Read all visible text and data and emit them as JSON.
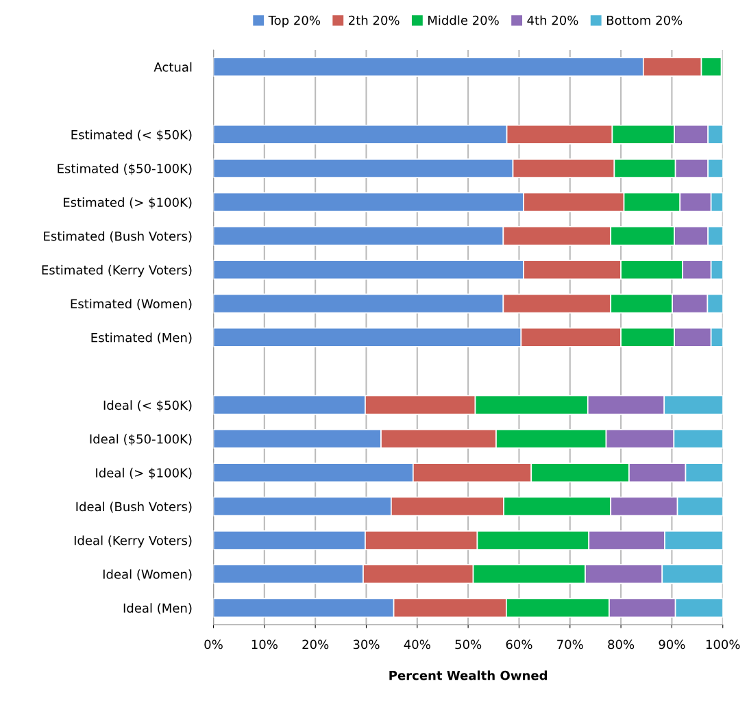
{
  "chart_data": {
    "type": "bar",
    "orientation": "horizontal",
    "stacked": true,
    "xlabel": "Percent Wealth Owned",
    "categories": [
      "Actual",
      null,
      "Estimated (< $50K)",
      "Estimated ($50-100K)",
      "Estimated (> $100K)",
      "Estimated (Bush Voters)",
      "Estimated (Kerry Voters)",
      "Estimated (Women)",
      "Estimated (Men)",
      null,
      "Ideal (< $50K)",
      "Ideal ($50-100K)",
      "Ideal (> $100K)",
      "Ideal (Bush Voters)",
      "Ideal (Kerry Voters)",
      "Ideal (Women)",
      "Ideal (Men)"
    ],
    "series": [
      {
        "name": "Top 20%",
        "color": "#5b8ed6",
        "values": [
          84.4,
          null,
          57.6,
          58.8,
          60.9,
          56.9,
          60.9,
          56.9,
          60.4,
          null,
          29.8,
          32.9,
          39.2,
          34.9,
          29.8,
          29.4,
          35.4
        ]
      },
      {
        "name": "2th 20%",
        "color": "#cc5e55",
        "values": [
          11.4,
          null,
          20.7,
          19.9,
          19.7,
          21.1,
          19.1,
          21.1,
          19.6,
          null,
          21.6,
          22.6,
          23.2,
          22.1,
          22.0,
          21.6,
          22.1
        ]
      },
      {
        "name": "Middle 20%",
        "color": "#00b84a",
        "values": [
          3.9,
          null,
          12.2,
          12.0,
          11.0,
          12.5,
          12.1,
          12.1,
          10.5,
          null,
          22.1,
          21.6,
          19.2,
          21.0,
          21.9,
          22.0,
          20.2
        ]
      },
      {
        "name": "4th 20%",
        "color": "#8e6db8",
        "values": [
          null,
          null,
          6.6,
          6.4,
          6.1,
          6.6,
          5.6,
          6.9,
          7.2,
          null,
          15.0,
          13.3,
          11.1,
          13.1,
          14.9,
          15.1,
          13.0
        ]
      },
      {
        "name": "Bottom 20%",
        "color": "#4db4d6",
        "values": [
          null,
          null,
          2.9,
          2.9,
          2.3,
          2.9,
          2.3,
          3.0,
          2.3,
          null,
          11.5,
          9.6,
          7.3,
          8.9,
          11.4,
          11.9,
          9.3
        ]
      }
    ],
    "xlim": [
      0,
      100
    ],
    "xticks": [
      {
        "value": 0,
        "label": "0%"
      },
      {
        "value": 10,
        "label": "10%"
      },
      {
        "value": 20,
        "label": "20%"
      },
      {
        "value": 30,
        "label": "30%"
      },
      {
        "value": 40,
        "label": "40%"
      },
      {
        "value": 50,
        "label": "50%"
      },
      {
        "value": 60,
        "label": "60%"
      },
      {
        "value": 70,
        "label": "70%"
      },
      {
        "value": 80,
        "label": "80%"
      },
      {
        "value": 90,
        "label": "90%"
      },
      {
        "value": 100,
        "label": "100%"
      }
    ],
    "grid": "x",
    "legend": "top"
  }
}
